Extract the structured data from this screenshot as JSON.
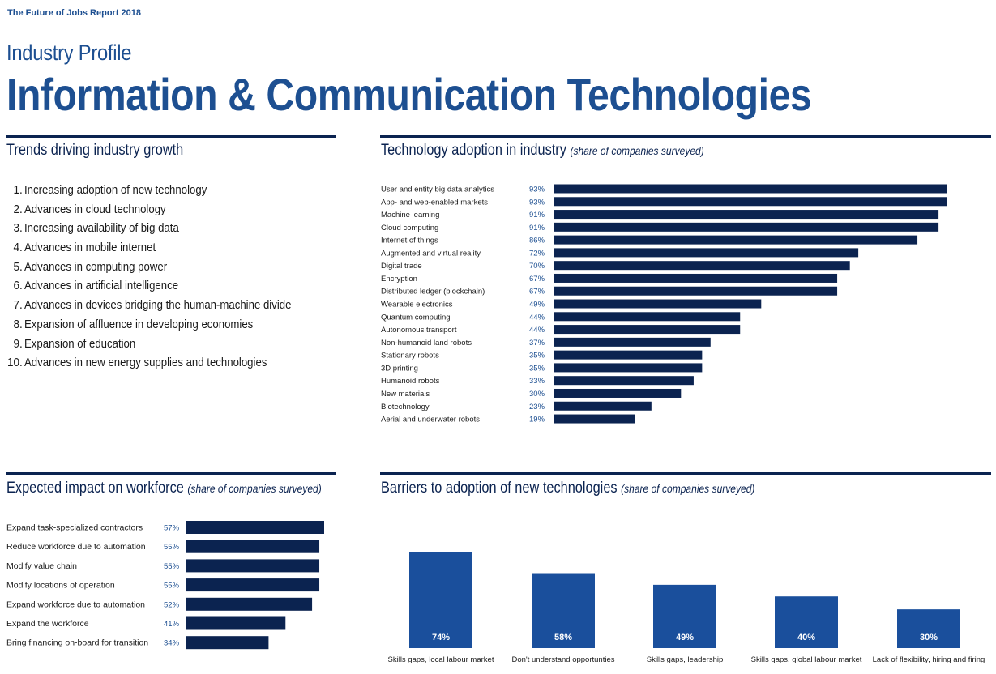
{
  "header": {
    "report_title": "The Future of Jobs Report 2018",
    "profile_label": "Industry Profile",
    "industry_name": "Information & Communication Technologies"
  },
  "trends": {
    "title": "Trends driving industry growth",
    "items": [
      {
        "num": "1.",
        "text": "Increasing adoption of new technology"
      },
      {
        "num": "2.",
        "text": "Advances in cloud technology"
      },
      {
        "num": "3.",
        "text": "Increasing availability of big data"
      },
      {
        "num": "4.",
        "text": "Advances in mobile internet"
      },
      {
        "num": "5.",
        "text": "Advances in computing power"
      },
      {
        "num": "6.",
        "text": "Advances in artificial intelligence"
      },
      {
        "num": "7.",
        "text": "Advances in devices bridging the human-machine divide"
      },
      {
        "num": "8.",
        "text": "Expansion of affluence in developing economies"
      },
      {
        "num": "9.",
        "text": "Expansion of education"
      },
      {
        "num": "10.",
        "text": "Advances in new energy supplies and technologies"
      }
    ]
  },
  "tech": {
    "title": "Technology adoption in industry",
    "subtitle": "(share of companies surveyed)"
  },
  "workforce": {
    "title": "Expected impact on workforce",
    "subtitle": "(share of companies surveyed)"
  },
  "barriers": {
    "title": "Barriers to adoption of new technologies",
    "subtitle": "(share of companies surveyed)"
  },
  "colors": {
    "navy": "#0b2350",
    "blue": "#1d4f91",
    "bar_blue": "#1a4f9c"
  },
  "chart_data": [
    {
      "id": "tech",
      "type": "bar",
      "orientation": "horizontal",
      "title": "Technology adoption in industry",
      "categories": [
        "User and entity big data analytics",
        "App- and web-enabled markets",
        "Machine learning",
        "Cloud computing",
        "Internet of things",
        "Augmented and virtual reality",
        "Digital trade",
        "Encryption",
        "Distributed ledger (blockchain)",
        "Wearable electronics",
        "Quantum computing",
        "Autonomous transport",
        "Non-humanoid land robots",
        "Stationary robots",
        "3D printing",
        "Humanoid robots",
        "New materials",
        "Biotechnology",
        "Aerial and underwater robots"
      ],
      "values": [
        93,
        93,
        91,
        91,
        86,
        72,
        70,
        67,
        67,
        49,
        44,
        44,
        37,
        35,
        35,
        33,
        30,
        23,
        19
      ],
      "labels": [
        "93%",
        "93%",
        "91%",
        "91%",
        "86%",
        "72%",
        "70%",
        "67%",
        "67%",
        "49%",
        "44%",
        "44%",
        "37%",
        "35%",
        "35%",
        "33%",
        "30%",
        "23%",
        "19%"
      ],
      "xlim": [
        0,
        100
      ]
    },
    {
      "id": "workforce",
      "type": "bar",
      "orientation": "horizontal",
      "title": "Expected impact on workforce",
      "categories": [
        "Expand task-specialized contractors",
        "Reduce workforce due to automation",
        "Modify value chain",
        "Modify locations of operation",
        "Expand workforce due to automation",
        "Expand the workforce",
        "Bring financing on-board for transition"
      ],
      "values": [
        57,
        55,
        55,
        55,
        52,
        41,
        34
      ],
      "labels": [
        "57%",
        "55%",
        "55%",
        "55%",
        "52%",
        "41%",
        "34%"
      ],
      "xlim": [
        0,
        57
      ]
    },
    {
      "id": "barriers",
      "type": "bar",
      "orientation": "vertical",
      "title": "Barriers to adoption of new technologies",
      "categories": [
        "Skills gaps, local labour market",
        "Don't understand opportunties",
        "Skills gaps, leadership",
        "Skills gaps, global labour market",
        "Lack of flexibility, hiring and firing"
      ],
      "values": [
        74,
        58,
        49,
        40,
        30
      ],
      "labels": [
        "74%",
        "58%",
        "49%",
        "40%",
        "30%"
      ],
      "ylim": [
        0,
        100
      ]
    }
  ]
}
